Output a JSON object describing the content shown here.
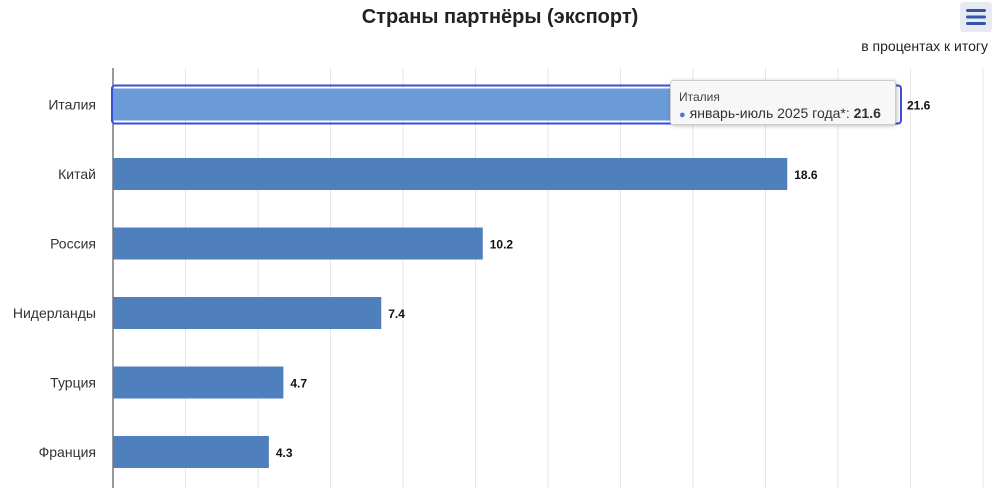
{
  "header": {
    "title": "Страны партнёры (экспорт)",
    "subtitle": "в процентах к итогу",
    "menu_icon": "hamburger-menu-icon"
  },
  "tooltip": {
    "category": "Италия",
    "series": "январь-июль 2025 года*",
    "separator": ": ",
    "value": "21.6"
  },
  "colors": {
    "bar": "#4f7fbd",
    "bar_hover": "#6a9bd8",
    "highlight_border": "#3a4fd6",
    "grid": "#e6e6e6",
    "axis": "#333333",
    "menu_bg": "#e8eaf3",
    "menu_icon": "#3456a6"
  },
  "chart_data": {
    "type": "bar",
    "orientation": "horizontal",
    "title": "Страны партнёры (экспорт)",
    "subtitle": "в процентах к итогу",
    "categories": [
      "Италия",
      "Китай",
      "Россия",
      "Нидерланды",
      "Турция",
      "Франция"
    ],
    "series": [
      {
        "name": "январь-июль 2025 года*",
        "values": [
          21.6,
          18.6,
          10.2,
          7.4,
          4.7,
          4.3
        ]
      }
    ],
    "data_labels": [
      "21.6",
      "18.6",
      "10.2",
      "7.4",
      "4.7",
      "4.3"
    ],
    "xlim": [
      0,
      24
    ],
    "grid": true,
    "highlighted_category": "Италия"
  }
}
